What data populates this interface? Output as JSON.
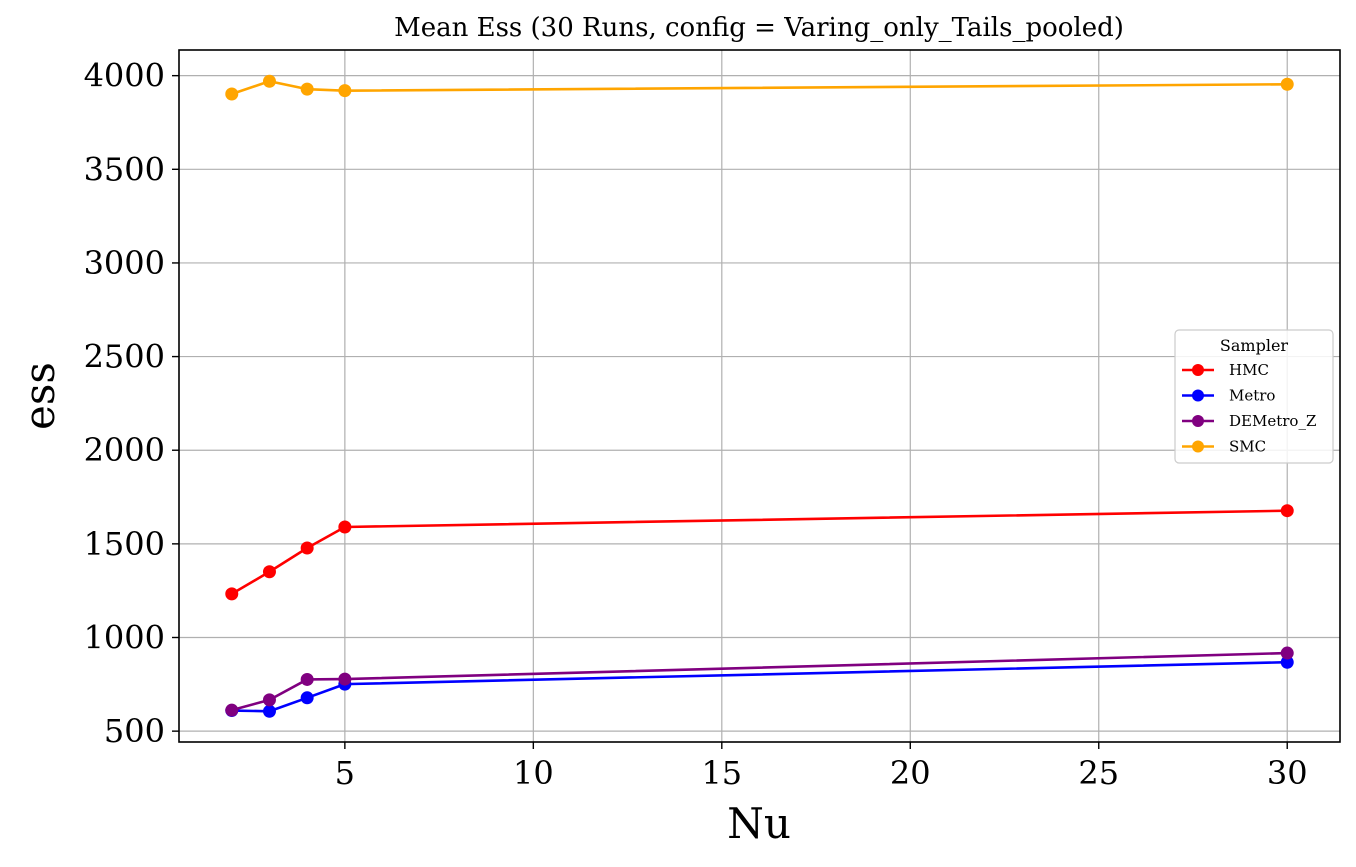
{
  "chart_data": {
    "type": "line",
    "title": "Mean Ess (30 Runs, config = Varing_only_Tails_pooled)",
    "xlabel": "Nu",
    "ylabel": "ess",
    "xlim": [
      0.6,
      31.4
    ],
    "ylim": [
      442,
      4137
    ],
    "x_ticks": [
      5,
      10,
      15,
      20,
      25,
      30
    ],
    "y_ticks": [
      500,
      1000,
      1500,
      2000,
      2500,
      3000,
      3500,
      4000
    ],
    "grid": true,
    "legend": {
      "title": "Sampler",
      "position": "center-right"
    },
    "x": [
      2,
      3,
      4,
      5,
      30
    ],
    "series": [
      {
        "name": "HMC",
        "color": "#ff0000",
        "values": [
          1233,
          1351,
          1478,
          1590,
          1677
        ]
      },
      {
        "name": "Metro",
        "color": "#0000ff",
        "values": [
          610,
          606,
          678,
          751,
          868
        ]
      },
      {
        "name": "DEMetro_Z",
        "color": "#800080",
        "values": [
          612,
          667,
          776,
          778,
          917
        ]
      },
      {
        "name": "SMC",
        "color": "#ffa500",
        "values": [
          3902,
          3970,
          3928,
          3920,
          3954
        ]
      }
    ]
  }
}
